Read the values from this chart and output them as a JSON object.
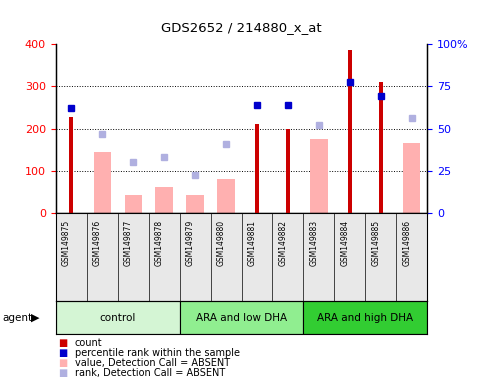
{
  "title": "GDS2652 / 214880_x_at",
  "samples": [
    "GSM149875",
    "GSM149876",
    "GSM149877",
    "GSM149878",
    "GSM149879",
    "GSM149880",
    "GSM149881",
    "GSM149882",
    "GSM149883",
    "GSM149884",
    "GSM149885",
    "GSM149886"
  ],
  "groups": [
    {
      "label": "control",
      "color": "#d4f5d4",
      "start": 0,
      "end": 4
    },
    {
      "label": "ARA and low DHA",
      "color": "#90ee90",
      "start": 4,
      "end": 8
    },
    {
      "label": "ARA and high DHA",
      "color": "#32cd32",
      "start": 8,
      "end": 12
    }
  ],
  "count_values": [
    228,
    null,
    null,
    null,
    null,
    null,
    210,
    198,
    null,
    385,
    310,
    null
  ],
  "rank_values_pct": [
    62.5,
    null,
    null,
    null,
    null,
    null,
    63.75,
    63.75,
    null,
    77.5,
    69.5,
    null
  ],
  "absent_value": [
    null,
    145,
    42,
    62,
    42,
    80,
    null,
    null,
    175,
    null,
    null,
    165
  ],
  "absent_rank_pct": [
    null,
    47,
    30,
    33.25,
    22.5,
    40.75,
    null,
    null,
    52,
    null,
    null,
    56.25
  ],
  "ylim_left": [
    0,
    400
  ],
  "ylim_right": [
    0,
    100
  ],
  "yticks_left": [
    0,
    100,
    200,
    300,
    400
  ],
  "yticks_right": [
    0,
    25,
    50,
    75,
    100
  ],
  "ytick_right_labels": [
    "0",
    "25",
    "50",
    "75",
    "100%"
  ],
  "count_color": "#cc0000",
  "rank_color": "#0000cc",
  "absent_val_color": "#ffb0b0",
  "absent_rank_color": "#b0b0e0",
  "bg_color": "#e8e8e8",
  "plot_bg": "#ffffff",
  "agent_label": "agent",
  "legend_items": [
    {
      "label": "count",
      "color": "#cc0000"
    },
    {
      "label": "percentile rank within the sample",
      "color": "#0000cc"
    },
    {
      "label": "value, Detection Call = ABSENT",
      "color": "#ffb0b0"
    },
    {
      "label": "rank, Detection Call = ABSENT",
      "color": "#b0b0e0"
    }
  ]
}
